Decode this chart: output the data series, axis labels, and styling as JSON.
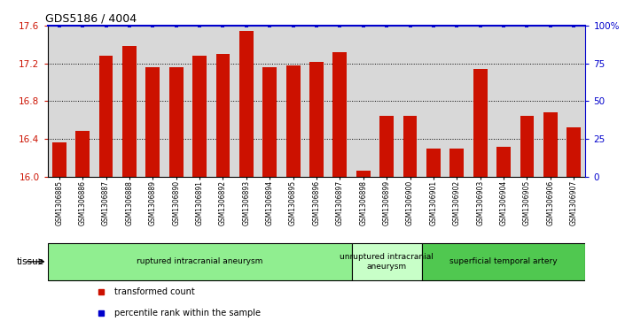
{
  "title": "GDS5186 / 4004",
  "samples": [
    "GSM1306885",
    "GSM1306886",
    "GSM1306887",
    "GSM1306888",
    "GSM1306889",
    "GSM1306890",
    "GSM1306891",
    "GSM1306892",
    "GSM1306893",
    "GSM1306894",
    "GSM1306895",
    "GSM1306896",
    "GSM1306897",
    "GSM1306898",
    "GSM1306899",
    "GSM1306900",
    "GSM1306901",
    "GSM1306902",
    "GSM1306903",
    "GSM1306904",
    "GSM1306905",
    "GSM1306906",
    "GSM1306907"
  ],
  "bar_values": [
    16.36,
    16.48,
    17.28,
    17.38,
    17.16,
    17.16,
    17.28,
    17.3,
    17.54,
    17.16,
    17.18,
    17.22,
    17.32,
    16.06,
    16.64,
    16.64,
    16.3,
    16.3,
    17.14,
    16.32,
    16.64,
    16.68,
    16.52
  ],
  "percentile_values": [
    100,
    100,
    100,
    100,
    100,
    100,
    100,
    100,
    100,
    100,
    100,
    100,
    100,
    100,
    100,
    100,
    100,
    100,
    100,
    100,
    100,
    100,
    100
  ],
  "ylim_left": [
    16.0,
    17.6
  ],
  "ylim_right": [
    0,
    100
  ],
  "yticks_left": [
    16.0,
    16.4,
    16.8,
    17.2,
    17.6
  ],
  "yticks_right": [
    0,
    25,
    50,
    75,
    100
  ],
  "bar_color": "#cc1100",
  "dot_color": "#0000cc",
  "plot_bg_color": "#d8d8d8",
  "tissue_groups": [
    {
      "label": "ruptured intracranial aneurysm",
      "start": 0,
      "end": 13,
      "color": "#90ee90"
    },
    {
      "label": "unruptured intracranial\naneurysm",
      "start": 13,
      "end": 16,
      "color": "#c8ffc8"
    },
    {
      "label": "superficial temporal artery",
      "start": 16,
      "end": 23,
      "color": "#50c850"
    }
  ],
  "legend_items": [
    {
      "label": "transformed count",
      "color": "#cc1100"
    },
    {
      "label": "percentile rank within the sample",
      "color": "#0000cc"
    }
  ],
  "tissue_label": "tissue",
  "grid_color": "#000000"
}
